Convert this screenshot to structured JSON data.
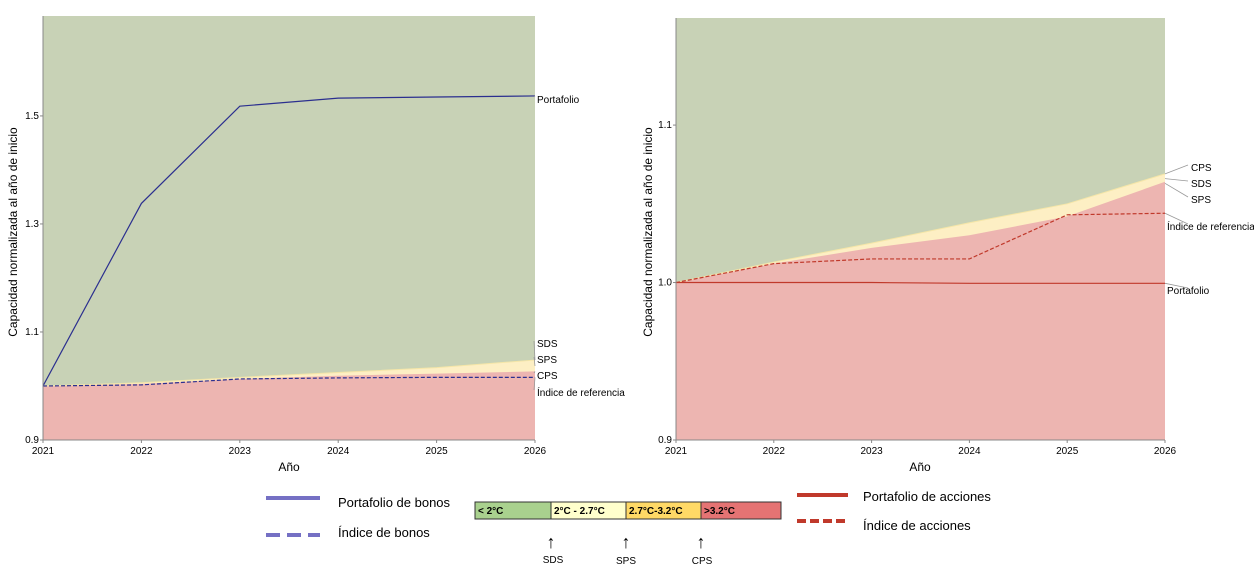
{
  "colors": {
    "green_zone": "#c8d2b6",
    "yellow_zone": "#fdefc4",
    "red_zone": "#edb5b1",
    "bond_line": "#2b2f8f",
    "equity_line": "#c0392b",
    "end_label_line": "#999999",
    "band_green": "#a9d18e",
    "band_yellow": "#ffffcc",
    "band_orange": "#ffd966",
    "band_red": "#e57373"
  },
  "chart_data": [
    {
      "type": "area",
      "xlabel": "Año",
      "ylabel": "Capacidad normalizada al año de inicio",
      "x": [
        2021,
        2022,
        2023,
        2024,
        2025,
        2026
      ],
      "x_ticks": [
        "2021",
        "2022",
        "2023",
        "2024",
        "2025",
        "2026"
      ],
      "y_ticks": [
        "0.9",
        "1.1",
        "1.3",
        "1.5"
      ],
      "y_tick_values": [
        0.9,
        1.1,
        1.3,
        1.5
      ],
      "ylim": [
        0.9,
        1.685
      ],
      "grid": false,
      "zones": {
        "lower": [
          1.0,
          1.004,
          1.013,
          1.019,
          1.023,
          1.027
        ],
        "upper": [
          1.0,
          1.006,
          1.016,
          1.025,
          1.034,
          1.048
        ]
      },
      "series": [
        {
          "name": "Portafolio",
          "style": "solid",
          "values": [
            1.0,
            1.338,
            1.518,
            1.533,
            1.535,
            1.537
          ]
        },
        {
          "name": "Índice de referencia",
          "style": "dashed",
          "values": [
            1.0,
            1.002,
            1.013,
            1.015,
            1.016,
            1.016
          ]
        }
      ],
      "end_labels": [
        {
          "text": "Portafolio",
          "value": 1.537
        },
        {
          "text": "SDS",
          "value": 1.048
        },
        {
          "text": "SPS",
          "value": 1.037
        },
        {
          "text": "CPS",
          "value": 1.027
        },
        {
          "text": "Índice de referencia",
          "value": 1.016
        }
      ]
    },
    {
      "type": "area",
      "xlabel": "Año",
      "ylabel": "Capacidad normalizada al año de inicio",
      "x": [
        2021,
        2022,
        2023,
        2024,
        2025,
        2026
      ],
      "x_ticks": [
        "2021",
        "2022",
        "2023",
        "2024",
        "2025",
        "2026"
      ],
      "y_ticks": [
        "0.9",
        "1.0",
        "1.1"
      ],
      "y_tick_values": [
        0.9,
        1.0,
        1.1
      ],
      "ylim": [
        0.9,
        1.168
      ],
      "grid": false,
      "zones": {
        "lower": [
          1.0,
          1.012,
          1.022,
          1.03,
          1.042,
          1.064
        ],
        "upper": [
          1.0,
          1.013,
          1.025,
          1.038,
          1.05,
          1.069
        ]
      },
      "series": [
        {
          "name": "Portafolio",
          "style": "solid",
          "values": [
            1.0,
            1.0,
            1.0,
            0.9995,
            0.9995,
            0.9995
          ]
        },
        {
          "name": "Índice de referencia",
          "style": "dashed",
          "values": [
            1.0,
            1.012,
            1.015,
            1.015,
            1.043,
            1.044
          ]
        }
      ],
      "end_labels": [
        {
          "text": "CPS",
          "value": 1.069
        },
        {
          "text": "SDS",
          "value": 1.066
        },
        {
          "text": "SPS",
          "value": 1.063
        },
        {
          "text": "Índice de referencia",
          "value": 1.044
        },
        {
          "text": "Portafolio",
          "value": 0.9995
        }
      ]
    }
  ],
  "legend": {
    "bond_portfolio": "Portafolio de bonos",
    "bond_index": "Índice de bonos",
    "equity_portfolio": "Portafolio de acciones",
    "equity_index": "Índice de acciones",
    "bands": [
      "< 2°C",
      "2°C - 2.7°C",
      "2.7°C-3.2°C",
      ">3.2°C"
    ],
    "arrows": [
      "SDS",
      "SPS",
      "CPS"
    ],
    "arrow_glyph": "↑"
  }
}
